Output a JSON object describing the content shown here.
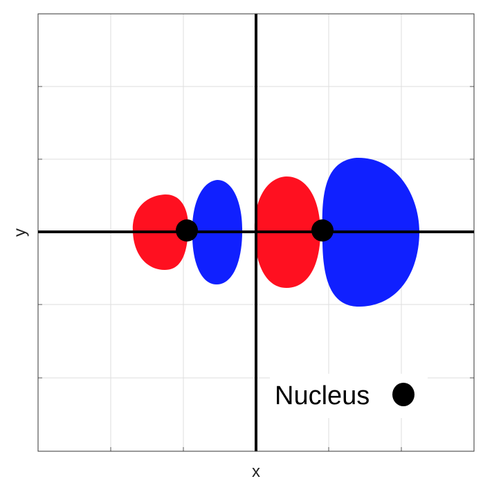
{
  "axes": {
    "x_label": "x",
    "y_label": "y",
    "grid": true
  },
  "legend": {
    "label": "Nucleus",
    "marker_icon": "nucleus-dot",
    "marker_color": "#000000"
  },
  "colors": {
    "negative_lobe": "#ff1020",
    "positive_lobe": "#1020ff",
    "nucleus": "#000000",
    "grid": "#dddddd",
    "axis": "#000000"
  }
}
